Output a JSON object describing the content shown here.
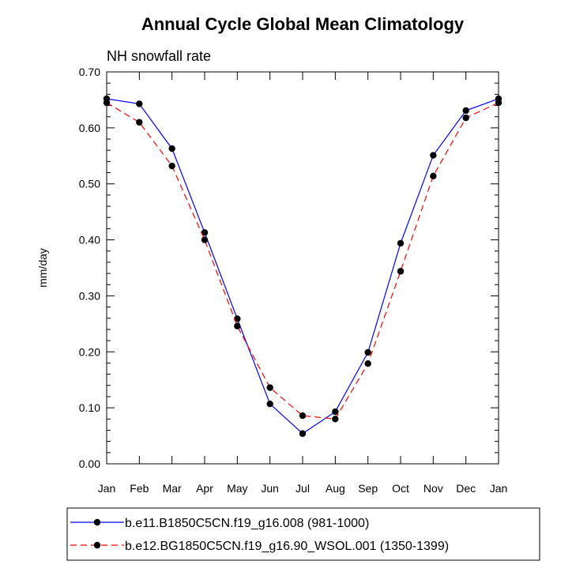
{
  "chart_data": {
    "type": "line",
    "title": "Annual Cycle Global Mean Climatology",
    "subtitle": "NH snowfall rate",
    "xlabel": "",
    "ylabel": "mm/day",
    "categories": [
      "Jan",
      "Feb",
      "Mar",
      "Apr",
      "May",
      "Jun",
      "Jul",
      "Aug",
      "Sep",
      "Oct",
      "Nov",
      "Dec",
      "Jan"
    ],
    "ylim": [
      0,
      0.7
    ],
    "y_ticks": [
      "0.00",
      "0.10",
      "0.20",
      "0.30",
      "0.40",
      "0.50",
      "0.60",
      "0.70"
    ],
    "grid": false,
    "legend_position": "bottom",
    "series": [
      {
        "name": "b.e11.B1850C5CN.f19_g16.008 (981-1000)",
        "color": "#0000ff",
        "line_style": "solid",
        "values": [
          0.652,
          0.643,
          0.563,
          0.413,
          0.259,
          0.107,
          0.054,
          0.093,
          0.199,
          0.394,
          0.551,
          0.631,
          0.652
        ]
      },
      {
        "name": "b.e12.BG1850C5CN.f19_g16.90_WSOL.001 (1350-1399)",
        "color": "#ff0000",
        "line_style": "dashed",
        "values": [
          0.645,
          0.61,
          0.532,
          0.4,
          0.246,
          0.136,
          0.086,
          0.08,
          0.179,
          0.344,
          0.514,
          0.618,
          0.645
        ]
      }
    ]
  }
}
